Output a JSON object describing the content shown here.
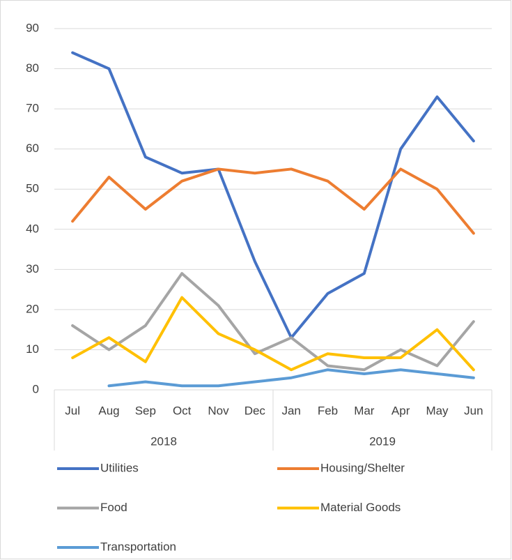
{
  "chart_data": {
    "type": "line",
    "categories": [
      "Jul",
      "Aug",
      "Sep",
      "Oct",
      "Nov",
      "Dec",
      "Jan",
      "Feb",
      "Mar",
      "Apr",
      "May",
      "Jun"
    ],
    "category_groups": [
      {
        "label": "2018",
        "count": 6
      },
      {
        "label": "2019",
        "count": 6
      }
    ],
    "series": [
      {
        "name": "Utilities",
        "color": "#4472c4",
        "values": [
          84,
          80,
          58,
          54,
          55,
          32,
          13,
          24,
          29,
          60,
          73,
          62
        ]
      },
      {
        "name": "Housing/Shelter",
        "color": "#ed7d31",
        "values": [
          42,
          53,
          45,
          52,
          55,
          54,
          55,
          52,
          45,
          55,
          50,
          39
        ]
      },
      {
        "name": "Food",
        "color": "#a5a5a5",
        "values": [
          16,
          10,
          16,
          29,
          21,
          9,
          13,
          6,
          5,
          10,
          6,
          17
        ]
      },
      {
        "name": "Material Goods",
        "color": "#ffc000",
        "values": [
          8,
          13,
          7,
          23,
          14,
          10,
          5,
          9,
          8,
          8,
          15,
          5
        ]
      },
      {
        "name": "Transportation",
        "color": "#5b9bd5",
        "values": [
          null,
          1,
          2,
          1,
          1,
          2,
          3,
          5,
          4,
          5,
          4,
          3
        ]
      }
    ],
    "ylim": [
      0,
      90
    ],
    "yticks": [
      0,
      10,
      20,
      30,
      40,
      50,
      60,
      70,
      80,
      90
    ],
    "grid": true,
    "legend": "bottom"
  }
}
